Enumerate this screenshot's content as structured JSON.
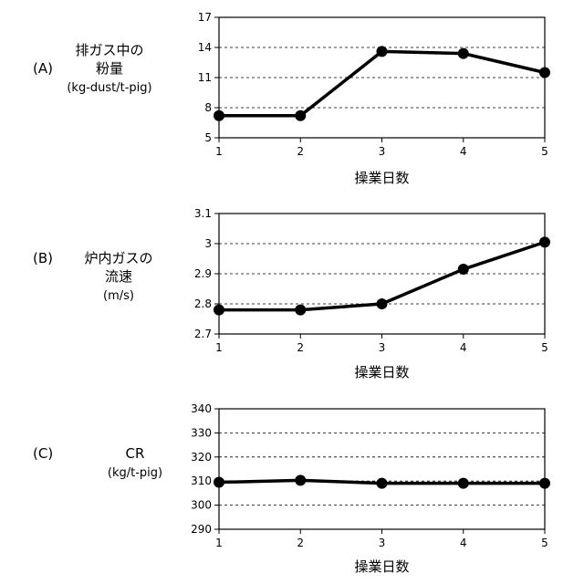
{
  "chart_data": [
    {
      "type": "line",
      "panel": "(A)",
      "ylabel": [
        "排ガス中の",
        "粉量",
        "(kg-dust/t-pig)"
      ],
      "xlabel": "操業日数",
      "x": [
        1,
        2,
        3,
        4,
        5
      ],
      "series": [
        {
          "values": [
            7.2,
            7.2,
            13.6,
            13.4,
            11.5
          ]
        }
      ],
      "ylim": [
        5,
        17
      ],
      "yticks": [
        "5",
        "8",
        "11",
        "14",
        "17"
      ],
      "xticks": [
        "1",
        "2",
        "3",
        "4",
        "5"
      ],
      "grid": "horizontal dashed"
    },
    {
      "type": "line",
      "panel": "(B)",
      "ylabel": [
        "炉内ガスの",
        "流速",
        "(m/s)"
      ],
      "xlabel": "操業日数",
      "x": [
        1,
        2,
        3,
        4,
        5
      ],
      "series": [
        {
          "values": [
            2.78,
            2.78,
            2.8,
            2.915,
            3.005
          ]
        }
      ],
      "ylim": [
        2.7,
        3.1
      ],
      "yticks": [
        "2.7",
        "2.8",
        "2.9",
        "3",
        "3.1"
      ],
      "xticks": [
        "1",
        "2",
        "3",
        "4",
        "5"
      ],
      "grid": "horizontal dashed"
    },
    {
      "type": "line",
      "panel": "(C)",
      "ylabel": [
        "CR",
        "(kg/t-pig)"
      ],
      "xlabel": "操業日数",
      "x": [
        1,
        2,
        3,
        4,
        5
      ],
      "series": [
        {
          "values": [
            309.5,
            310.3,
            309.1,
            309.1,
            309.1
          ]
        }
      ],
      "ylim": [
        290,
        340
      ],
      "yticks": [
        "290",
        "300",
        "310",
        "320",
        "330",
        "340"
      ],
      "xticks": [
        "1",
        "2",
        "3",
        "4",
        "5"
      ],
      "grid": "horizontal dashed"
    }
  ]
}
